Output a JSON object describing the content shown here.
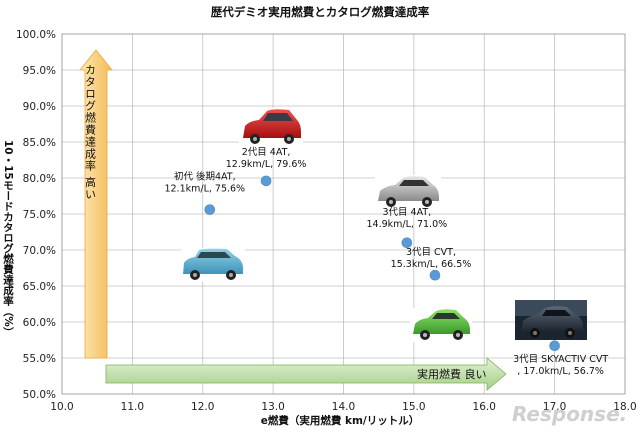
{
  "chart_data": {
    "type": "scatter",
    "title": "歴代デミオ実用燃費とカタログ燃費達成率",
    "xlabel": "e燃費（実用燃費 km/リットル）",
    "ylabel": "10・15モードカタログ燃費達成率（%）",
    "xlim": [
      10.0,
      18.0
    ],
    "ylim": [
      50.0,
      100.0
    ],
    "xticks": [
      "10.0",
      "11.0",
      "12.0",
      "13.0",
      "14.0",
      "15.0",
      "16.0",
      "17.0",
      "18.0"
    ],
    "yticks": [
      "50.0%",
      "55.0%",
      "60.0%",
      "65.0%",
      "70.0%",
      "75.0%",
      "80.0%",
      "85.0%",
      "90.0%",
      "95.0%",
      "100.0%"
    ],
    "grid": true,
    "series": [
      {
        "points": [
          {
            "x": 12.1,
            "y": 75.6,
            "label_line1": "初代 後期4AT,",
            "label_line2": "12.1km/L, 75.6%",
            "car": "初代デミオ（ブルー）"
          },
          {
            "x": 12.9,
            "y": 79.6,
            "label_line1": "2代目 4AT,",
            "label_line2": "12.9km/L, 79.6%",
            "car": "2代目デミオ（レッド）"
          },
          {
            "x": 14.9,
            "y": 71.0,
            "label_line1": "3代目 4AT,",
            "label_line2": "14.9km/L, 71.0%",
            "car": "3代目デミオ（シルバー）"
          },
          {
            "x": 15.3,
            "y": 66.5,
            "label_line1": "3代目 CVT,",
            "label_line2": "15.3km/L, 66.5%",
            "car": "3代目デミオ（グリーン）"
          },
          {
            "x": 17.0,
            "y": 56.7,
            "label_line1": "3代目 SKYACTIV CVT",
            "label_line2": ", 17.0km/L, 56.7%",
            "car": "SKYACTIV デミオ（ダーク）"
          }
        ]
      }
    ],
    "annotations": {
      "vertical_arrow": "カタログ燃費達成率 高い",
      "horizontal_arrow": "実用燃費 良い"
    },
    "watermark": "Response.",
    "colors": {
      "point": "#5b9bd5",
      "grid": "#c0c0c0",
      "arrow_v": "#f7c46c",
      "arrow_h": "#a9d18e"
    }
  }
}
